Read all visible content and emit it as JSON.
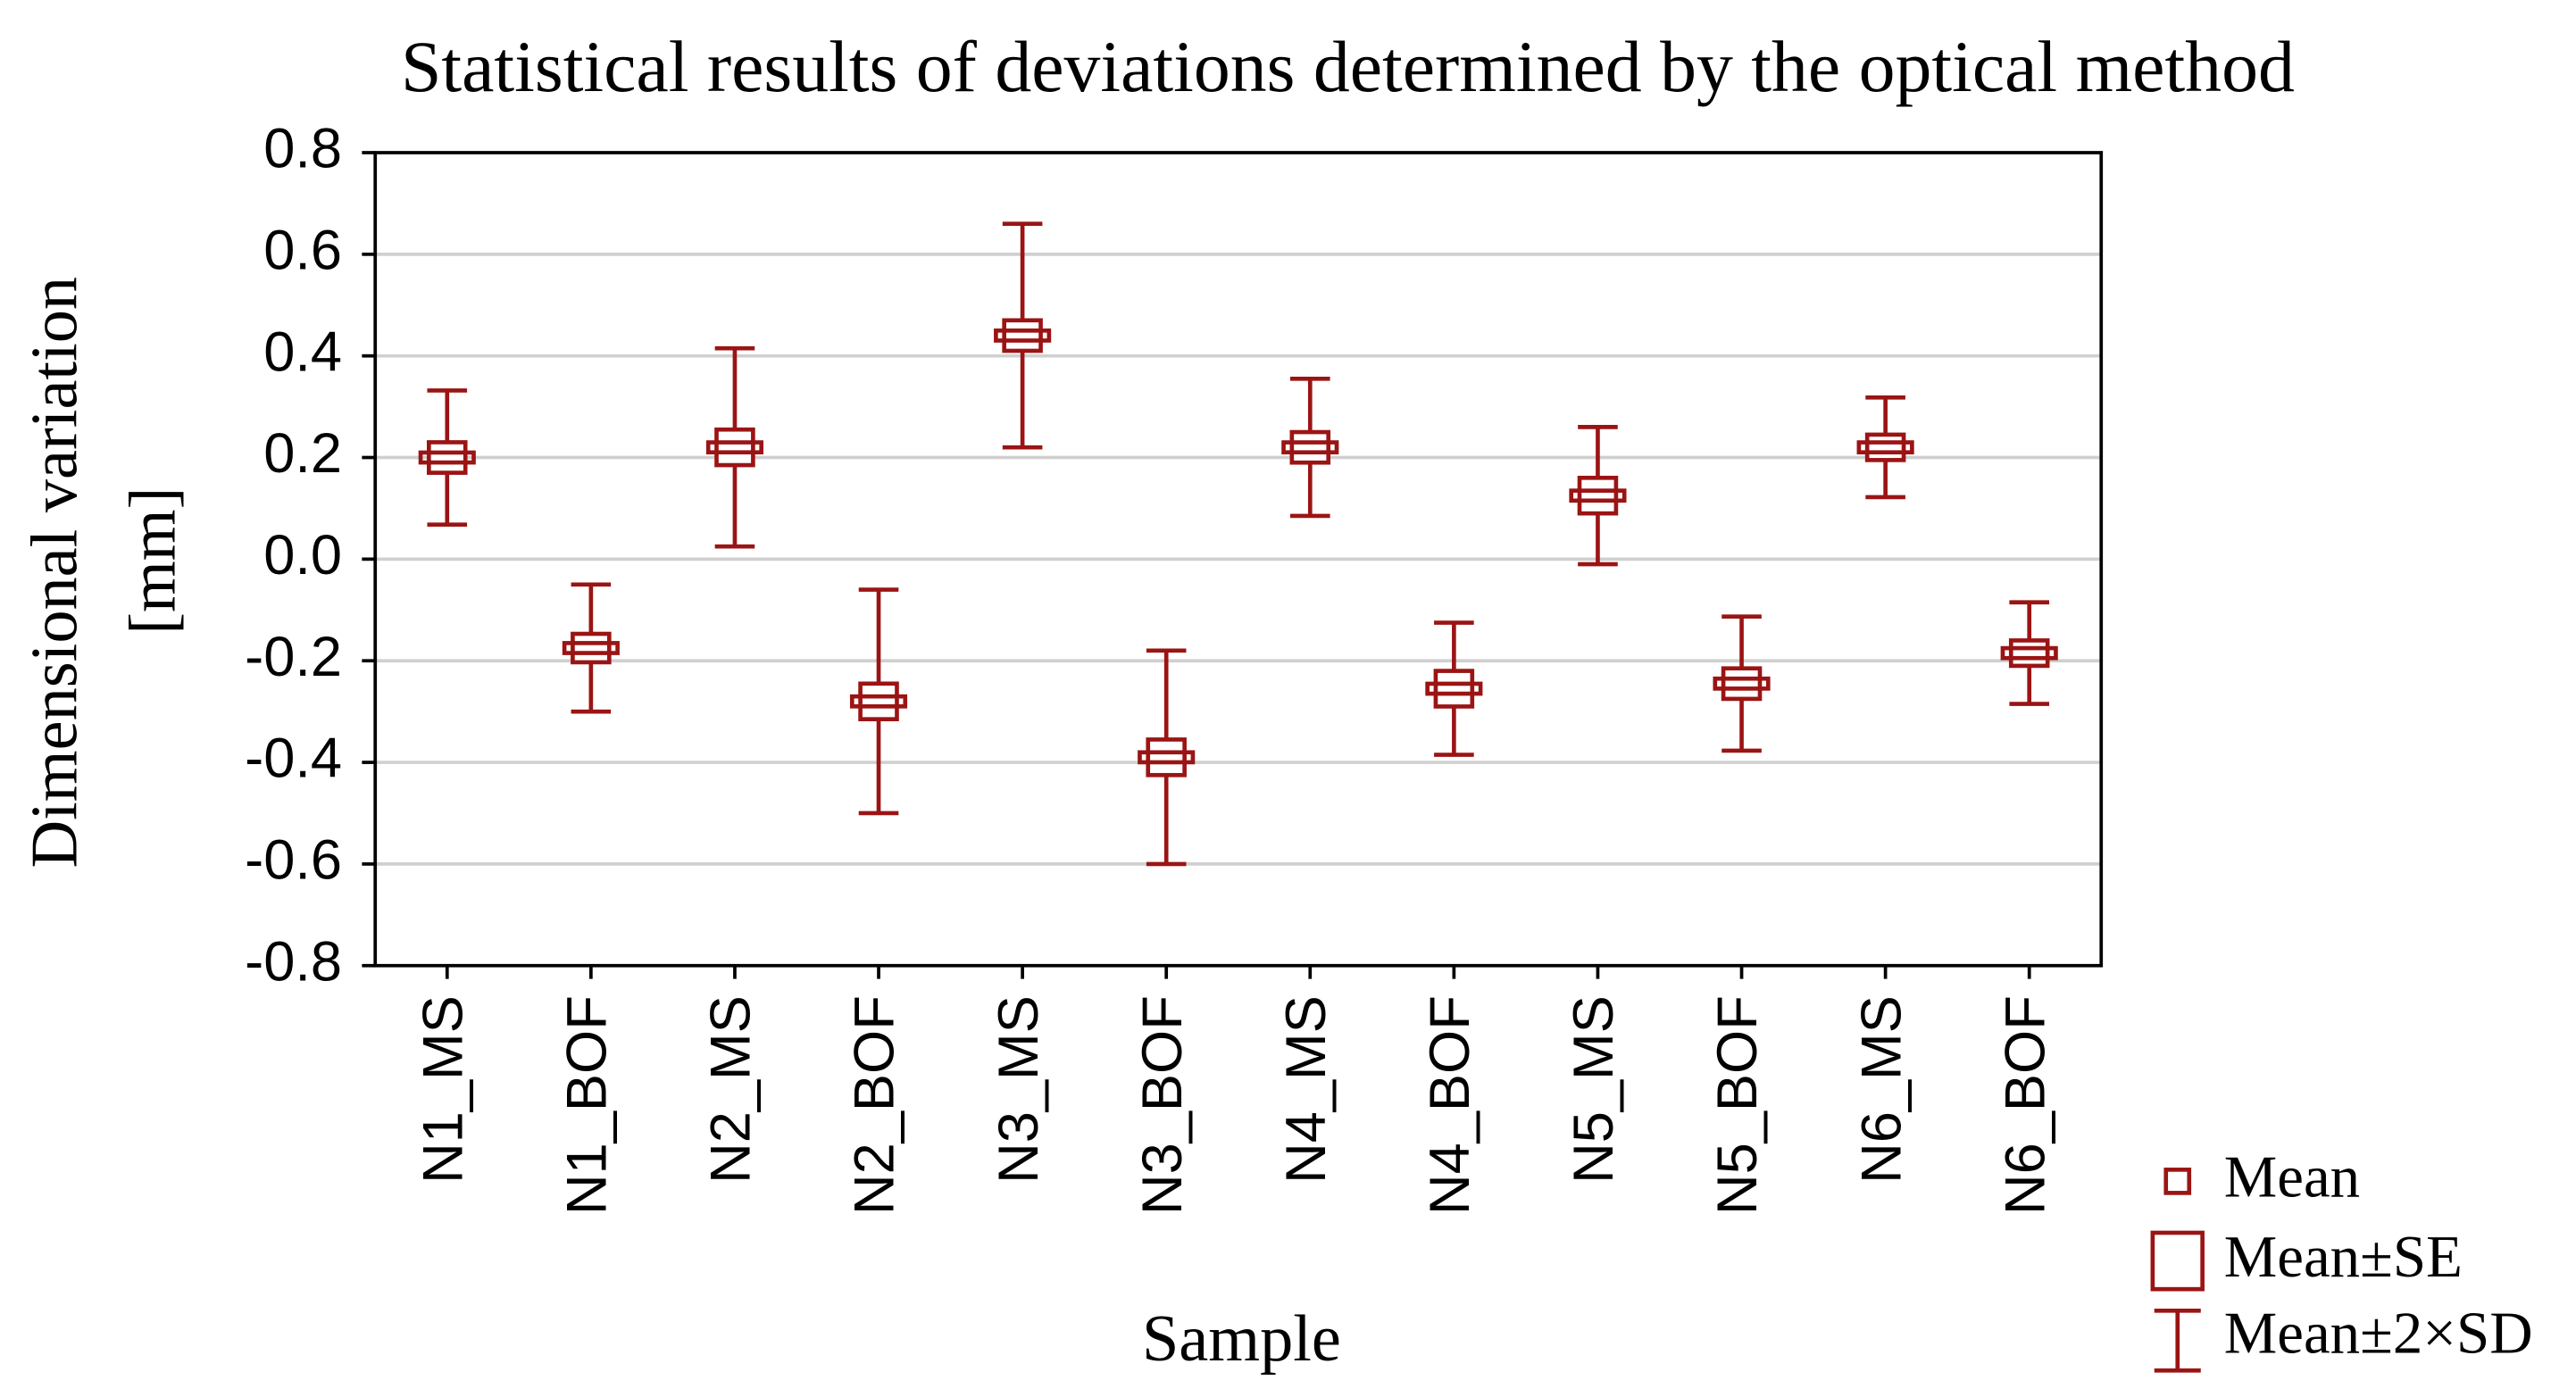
{
  "chart_data": {
    "type": "errorbar",
    "title": "Statistical results of deviations determined by the optical method",
    "xlabel": "Sample",
    "ylabel": [
      "Dimensional variation",
      "[mm]"
    ],
    "categories": [
      "N1_MS",
      "N1_BOF",
      "N2_MS",
      "N2_BOF",
      "N3_MS",
      "N3_BOF",
      "N4_MS",
      "N4_BOF",
      "N5_MS",
      "N5_BOF",
      "N6_MS",
      "N6_BOF"
    ],
    "series": [
      {
        "name": "Mean",
        "color": "#9b1414",
        "values": [
          0.2,
          -0.175,
          0.22,
          -0.28,
          0.44,
          -0.39,
          0.22,
          -0.255,
          0.125,
          -0.245,
          0.22,
          -0.185
        ],
        "se": [
          0.03,
          0.028,
          0.035,
          0.035,
          0.03,
          0.035,
          0.03,
          0.035,
          0.035,
          0.03,
          0.025,
          0.025
        ],
        "sd": [
          0.066,
          0.0625,
          0.0975,
          0.11,
          0.11,
          0.105,
          0.0675,
          0.065,
          0.0675,
          0.066,
          0.049,
          0.05
        ]
      }
    ],
    "legend": [
      "Mean",
      "Mean±SE",
      "Mean±2×SD"
    ],
    "ylim": [
      -0.8,
      0.8
    ],
    "yticks": [
      -0.8,
      -0.6,
      -0.4,
      -0.2,
      {
        "value": 0,
        "label": "0.0"
      },
      0.2,
      0.4,
      0.6,
      0.8
    ],
    "grid": true
  }
}
